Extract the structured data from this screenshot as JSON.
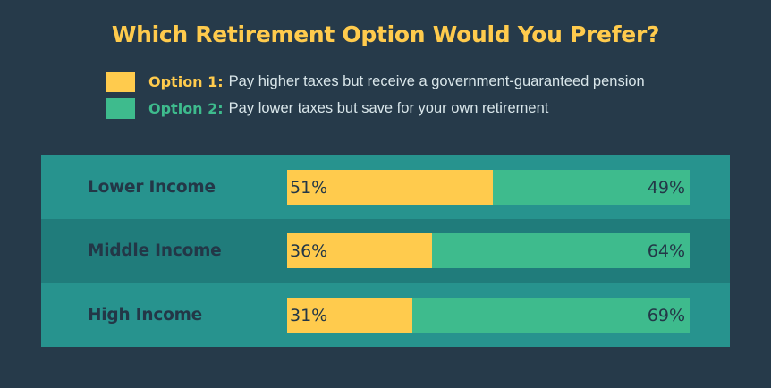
{
  "title": "Which Retirement Option Would You Prefer?",
  "legend": [
    {
      "key": "Option 1:",
      "text": "Pay higher taxes but receive a government-guaranteed pension",
      "color": "#ffcb4d"
    },
    {
      "key": "Option 2:",
      "text": "Pay lower taxes but save for your own retirement",
      "color": "#3ebb8d"
    }
  ],
  "colors": {
    "background": "#263a4a",
    "row_light": "#27938e",
    "row_dark": "#207c7b",
    "label": "#233747"
  },
  "chart_data": {
    "type": "bar",
    "stacked": true,
    "orientation": "horizontal",
    "title": "Which Retirement Option Would You Prefer?",
    "categories": [
      "Lower Income",
      "Middle Income",
      "High Income"
    ],
    "series": [
      {
        "name": "Option 1",
        "values": [
          51,
          36,
          31
        ],
        "labels": [
          "51%",
          "36%",
          "31%"
        ]
      },
      {
        "name": "Option 2",
        "values": [
          49,
          64,
          69
        ],
        "labels": [
          "49%",
          "64%",
          "69%"
        ]
      }
    ],
    "xlim": [
      0,
      100
    ],
    "grid": false,
    "legend_position": "top"
  }
}
